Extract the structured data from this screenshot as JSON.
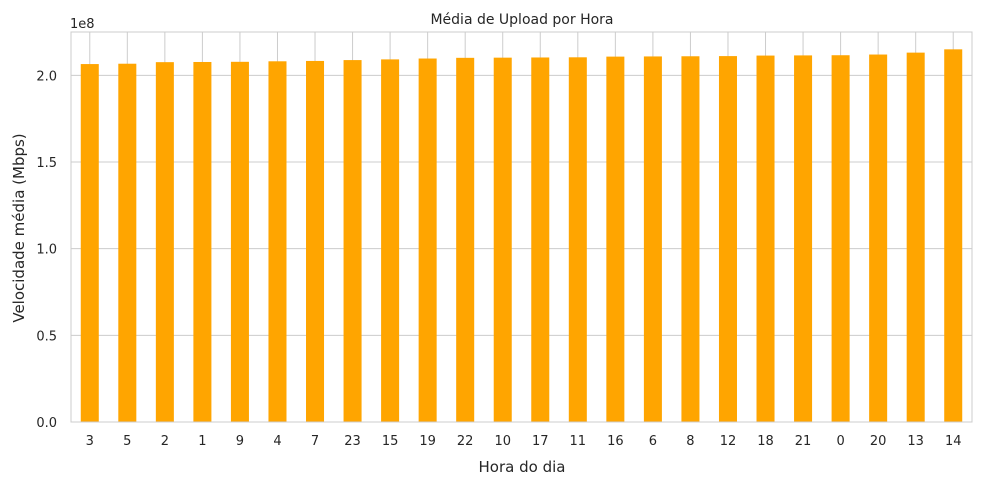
{
  "chart_data": {
    "type": "bar",
    "title": "Média de Upload por Hora",
    "xlabel": "Hora do dia",
    "ylabel": "Velocidade média (Mbps)",
    "offset_label": "1e8",
    "categories": [
      "3",
      "5",
      "2",
      "1",
      "9",
      "4",
      "7",
      "23",
      "15",
      "19",
      "22",
      "10",
      "17",
      "11",
      "16",
      "6",
      "8",
      "12",
      "18",
      "21",
      "0",
      "20",
      "13",
      "14"
    ],
    "values": [
      206500000,
      206700000,
      207600000,
      207700000,
      207800000,
      208100000,
      208300000,
      208800000,
      209200000,
      209700000,
      210100000,
      210200000,
      210300000,
      210400000,
      210800000,
      210900000,
      211000000,
      211100000,
      211400000,
      211500000,
      211600000,
      212000000,
      213100000,
      215000000
    ],
    "ylim": [
      0,
      225000000
    ],
    "ytick_labels": [
      "0.0",
      "0.5",
      "1.0",
      "1.5",
      "2.0"
    ],
    "ytick_values": [
      0,
      50000000,
      100000000,
      150000000,
      200000000
    ],
    "bar_color": "#FFA500",
    "grid": true
  }
}
